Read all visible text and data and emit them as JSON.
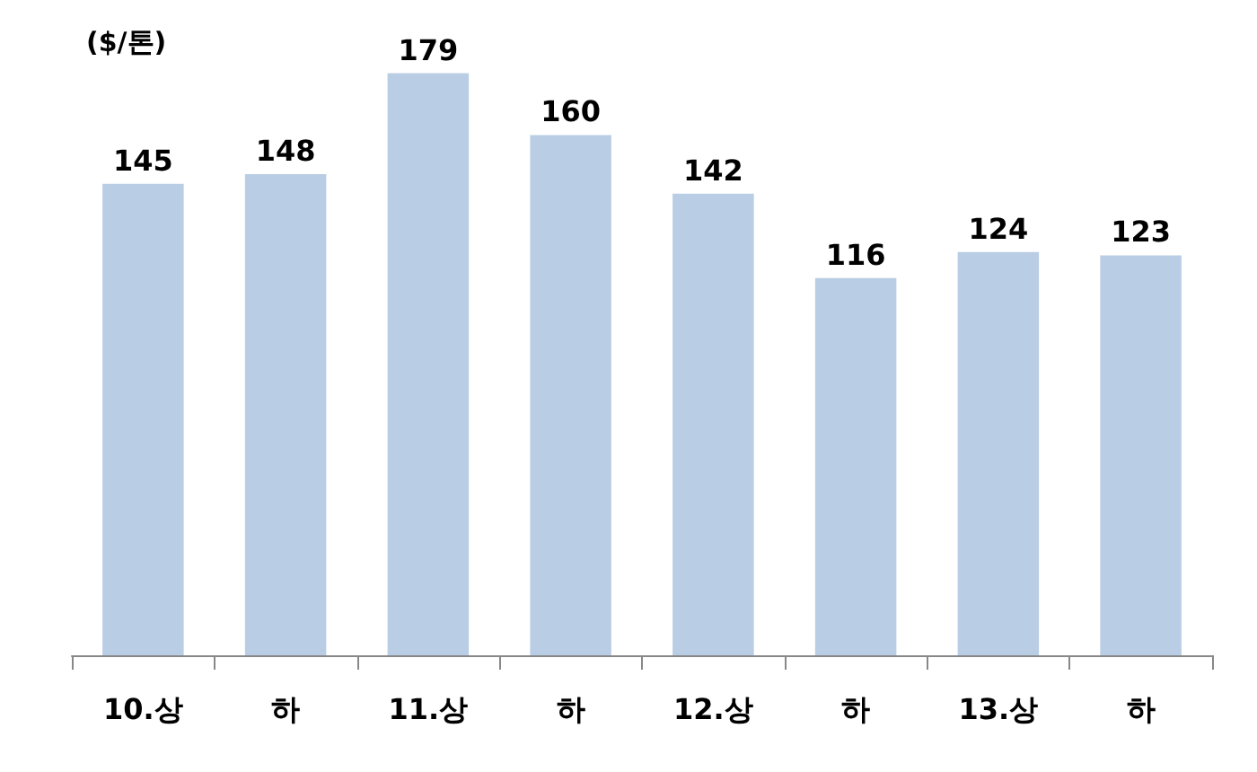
{
  "chart_data": {
    "type": "bar",
    "ylabel": "($/톤)",
    "categories": [
      "10.상",
      "하",
      "11.상",
      "하",
      "12.상",
      "하",
      "13.상",
      "하"
    ],
    "values": [
      145,
      148,
      179,
      160,
      142,
      116,
      124,
      123
    ],
    "color": "#b9cde5",
    "data_labels": true
  }
}
